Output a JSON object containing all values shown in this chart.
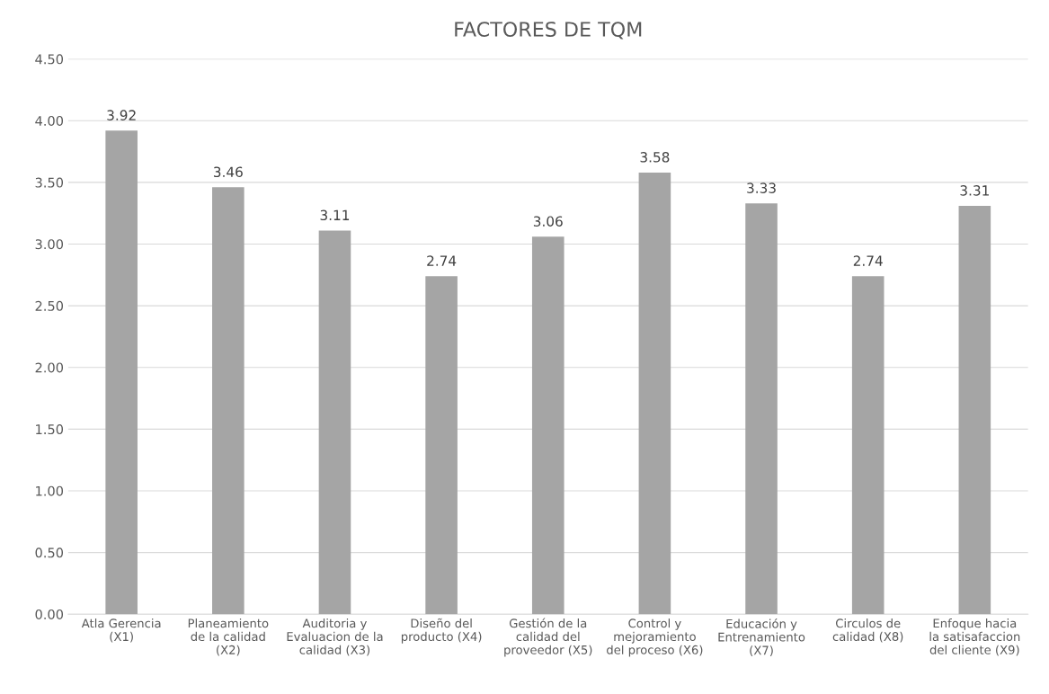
{
  "chart_data": {
    "type": "bar",
    "title": "FACTORES DE TQM",
    "categories": [
      "Atla Gerencia\n(X1)",
      "Planeamiento\nde la calidad\n(X2)",
      "Auditoria y\nEvaluacion de la\ncalidad (X3)",
      "Diseño del\nproducto (X4)",
      "Gestión de la\ncalidad del\nproveedor (X5)",
      "Control y\nmejoramiento\ndel proceso (X6)",
      "Educación y\nEntrenamiento\n(X7)",
      "Circulos de\ncalidad (X8)",
      "Enfoque hacia\nla satisafaccion\ndel cliente (X9)"
    ],
    "values": [
      3.92,
      3.46,
      3.11,
      2.74,
      3.06,
      3.58,
      3.33,
      2.74,
      3.31
    ],
    "value_labels": [
      "3.92",
      "3.46",
      "3.11",
      "2.74",
      "3.06",
      "3.58",
      "3.33",
      "2.74",
      "3.31"
    ],
    "color": "#a5a5a5",
    "ylim": [
      0,
      4.5
    ],
    "yticks": [
      {
        "value": 0,
        "label": "0.00"
      },
      {
        "value": 0.5,
        "label": "0.50"
      },
      {
        "value": 1,
        "label": "1.00"
      },
      {
        "value": 1.5,
        "label": "1.50"
      },
      {
        "value": 2,
        "label": "2.00"
      },
      {
        "value": 2.5,
        "label": "2.50"
      },
      {
        "value": 3,
        "label": "3.00"
      },
      {
        "value": 3.5,
        "label": "3.50"
      },
      {
        "value": 4,
        "label": "4.00"
      },
      {
        "value": 4.5,
        "label": "4.50"
      }
    ],
    "grid": "y"
  }
}
